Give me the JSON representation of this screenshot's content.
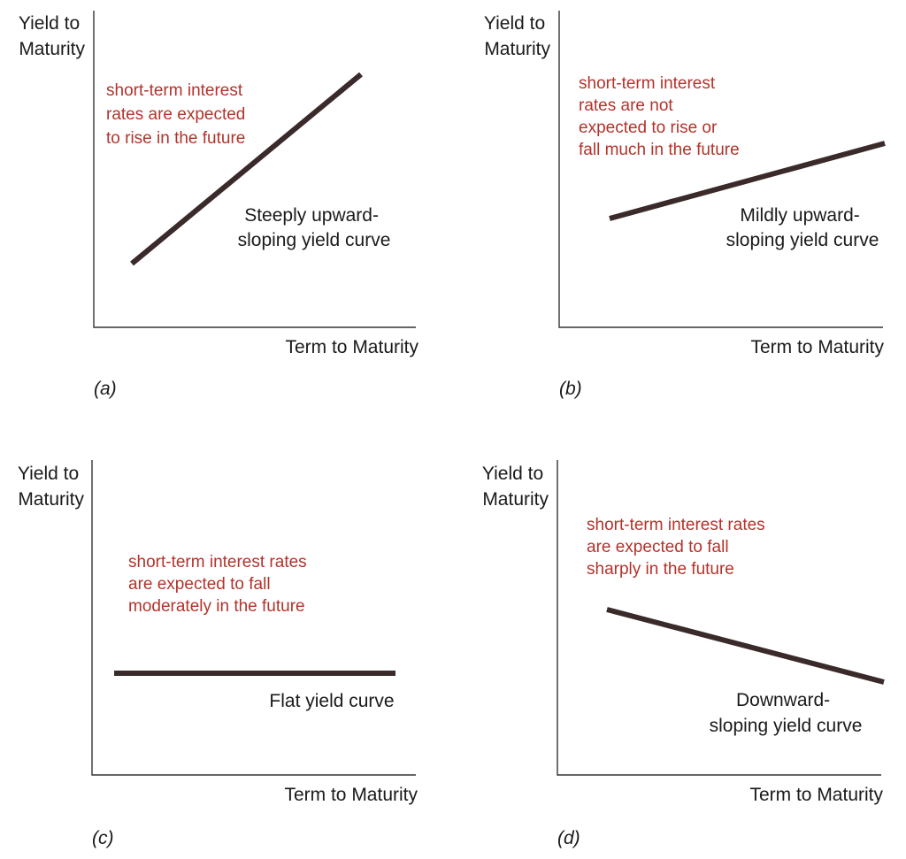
{
  "panels": [
    {
      "id": "a",
      "caption": "(a)",
      "y_axis_label": [
        "Yield to",
        "Maturity"
      ],
      "x_axis_label": "Term to Maturity",
      "note": [
        "short-term interest",
        "rates are expected",
        "to rise in the future"
      ],
      "curve_label": [
        "Steeply upward-",
        "sloping yield curve"
      ],
      "shape": "steeply-upward-sloping"
    },
    {
      "id": "b",
      "caption": "(b)",
      "y_axis_label": [
        "Yield to",
        "Maturity"
      ],
      "x_axis_label": "Term to Maturity",
      "note": [
        "short-term interest",
        "rates are not",
        "expected to rise or",
        "fall much in the future"
      ],
      "curve_label": [
        "Mildly upward-",
        "sloping yield curve"
      ],
      "shape": "mildly-upward-sloping"
    },
    {
      "id": "c",
      "caption": "(c)",
      "y_axis_label": [
        "Yield to",
        "Maturity"
      ],
      "x_axis_label": "Term to Maturity",
      "note": [
        "short-term interest rates",
        "are expected to fall",
        "moderately in the future"
      ],
      "curve_label": [
        "Flat yield curve"
      ],
      "shape": "flat"
    },
    {
      "id": "d",
      "caption": "(d)",
      "y_axis_label": [
        "Yield to",
        "Maturity"
      ],
      "x_axis_label": "Term to Maturity",
      "note": [
        "short-term interest rates",
        "are expected to fall",
        "sharply in the future"
      ],
      "curve_label": [
        "Downward-",
        "sloping yield curve"
      ],
      "shape": "downward-sloping"
    }
  ],
  "colors": {
    "note_text": "#b3332b",
    "curve": "#3a2a2a",
    "axis": "#333333",
    "text": "#1a1a1a"
  }
}
